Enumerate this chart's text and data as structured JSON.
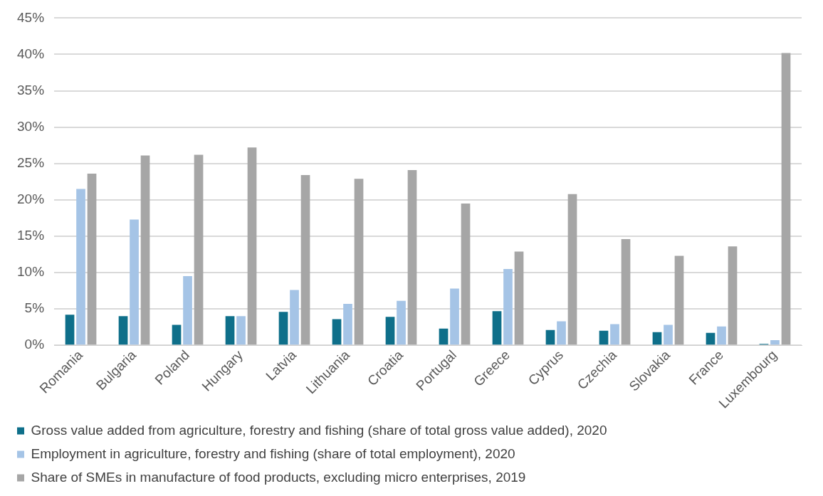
{
  "chart_data": {
    "type": "bar",
    "categories": [
      "Romania",
      "Bulgaria",
      "Poland",
      "Hungary",
      "Latvia",
      "Lithuania",
      "Croatia",
      "Portugal",
      "Greece",
      "Cyprus",
      "Czechia",
      "Slovakia",
      "France",
      "Luxembourg"
    ],
    "series": [
      {
        "name": "Gross value added from agriculture, forestry and fishing (share of total gross value added), 2020",
        "color": "#0e6f8a",
        "values": [
          4.2,
          4.0,
          2.8,
          4.0,
          4.6,
          3.6,
          3.9,
          2.3,
          4.7,
          2.1,
          2.0,
          1.8,
          1.7,
          0.2
        ]
      },
      {
        "name": "Employment in agriculture, forestry and fishing (share of total employment), 2020",
        "color": "#a5c4e6",
        "values": [
          21.5,
          17.3,
          9.5,
          4.0,
          7.6,
          5.7,
          6.1,
          7.8,
          10.5,
          3.3,
          2.9,
          2.8,
          2.6,
          0.7
        ]
      },
      {
        "name": "Share of SMEs in manufacture of food products, excluding micro enterprises, 2019",
        "color": "#a6a6a6",
        "values": [
          23.6,
          26.1,
          26.2,
          27.2,
          23.4,
          22.9,
          24.1,
          19.5,
          12.9,
          20.8,
          14.6,
          12.3,
          13.6,
          40.2
        ]
      }
    ],
    "ylim": [
      0,
      45
    ],
    "yticks": [
      {
        "value": 0,
        "label": "0%"
      },
      {
        "value": 5,
        "label": "5%"
      },
      {
        "value": 10,
        "label": "10%"
      },
      {
        "value": 15,
        "label": "15%"
      },
      {
        "value": 20,
        "label": "20%"
      },
      {
        "value": 25,
        "label": "25%"
      },
      {
        "value": 30,
        "label": "30%"
      },
      {
        "value": 35,
        "label": "35%"
      },
      {
        "value": 40,
        "label": "40%"
      },
      {
        "value": 45,
        "label": "45%"
      }
    ],
    "grid": "y",
    "legend": "bottom"
  }
}
